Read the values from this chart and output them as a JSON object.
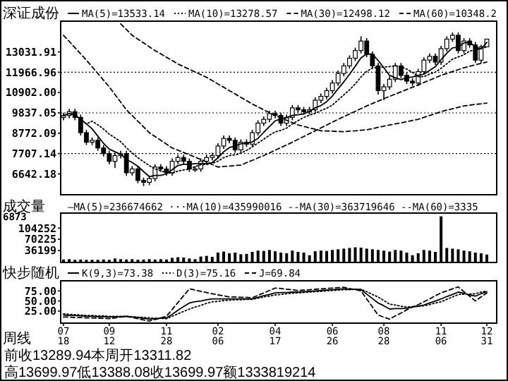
{
  "chart_data": [
    {
      "type": "candlestick",
      "title": "深证成份",
      "legend": "top",
      "tick_labels": "y",
      "categories": [
        null,
        null,
        null,
        null,
        null,
        null,
        null,
        null,
        null,
        null,
        null,
        null,
        null,
        null,
        null,
        null,
        null,
        null,
        null,
        null,
        null,
        null,
        null,
        null,
        null,
        null,
        null,
        null,
        null,
        null,
        null,
        null,
        null,
        null,
        null,
        null,
        null,
        null,
        null,
        null,
        null,
        null,
        null,
        null,
        null,
        null,
        null,
        null,
        null,
        null,
        null,
        null,
        null,
        null,
        null,
        null,
        null,
        null,
        null,
        null,
        null,
        null,
        null,
        null,
        null,
        null,
        null,
        null,
        null,
        null,
        null,
        null,
        null,
        null,
        null
      ],
      "ylim": [
        5550,
        14640
      ],
      "yticks": [
        6642.18,
        7707.14,
        8772.09,
        9837.05,
        {
          "value": 10902,
          "label": "10902.00"
        },
        11966.96,
        13031.91
      ],
      "ref_lines": [
        {
          "axis": "y",
          "value": 7707.14,
          "line_style": "dotted"
        },
        {
          "axis": "y",
          "value": 9837.05,
          "line_style": "dotted"
        },
        {
          "axis": "y",
          "value": 11966.96,
          "line_style": "dotted"
        }
      ],
      "ohlc": [
        [
          9600,
          9850,
          9450,
          9700
        ],
        [
          9700,
          10050,
          9550,
          9900
        ],
        [
          9900,
          10050,
          9450,
          9600
        ],
        [
          9600,
          9750,
          8650,
          8800
        ],
        [
          8800,
          8950,
          8150,
          8300
        ],
        [
          8300,
          8550,
          8150,
          8400
        ],
        [
          8400,
          8550,
          7850,
          8000
        ],
        [
          8000,
          8150,
          7550,
          7700
        ],
        [
          7700,
          7850,
          7150,
          7300
        ],
        [
          7300,
          7750,
          6950,
          7600
        ],
        [
          7600,
          7850,
          7450,
          7700
        ],
        [
          7700,
          7850,
          6550,
          6700
        ],
        [
          6700,
          7050,
          6550,
          6900
        ],
        [
          6900,
          7050,
          6150,
          6300
        ],
        [
          6300,
          6450,
          6000,
          6200
        ],
        [
          6200,
          6550,
          6050,
          6400
        ],
        [
          6400,
          7150,
          6250,
          7000
        ],
        [
          7000,
          7150,
          6750,
          6900
        ],
        [
          6900,
          7050,
          6550,
          6700
        ],
        [
          6700,
          7450,
          6550,
          7300
        ],
        [
          7300,
          7650,
          7150,
          7500
        ],
        [
          7500,
          7650,
          7150,
          7300
        ],
        [
          7300,
          7450,
          6750,
          6900
        ],
        [
          6900,
          7050,
          6750,
          6900
        ],
        [
          6900,
          7450,
          6750,
          7300
        ],
        [
          7300,
          7650,
          7150,
          7500
        ],
        [
          7500,
          7750,
          7350,
          7600
        ],
        [
          7600,
          8250,
          7450,
          8100
        ],
        [
          8100,
          8650,
          7950,
          8500
        ],
        [
          8500,
          8650,
          8250,
          8400
        ],
        [
          8400,
          8550,
          7750,
          7900
        ],
        [
          7900,
          8450,
          7750,
          8300
        ],
        [
          8300,
          8450,
          8050,
          8200
        ],
        [
          8200,
          8950,
          8050,
          8800
        ],
        [
          8800,
          9450,
          8650,
          9300
        ],
        [
          9300,
          9650,
          9150,
          9500
        ],
        [
          9500,
          9950,
          9350,
          9800
        ],
        [
          9800,
          9950,
          9550,
          9700
        ],
        [
          9700,
          9850,
          9150,
          9300
        ],
        [
          9300,
          9750,
          9150,
          9600
        ],
        [
          9600,
          10250,
          9450,
          10100
        ],
        [
          10100,
          10250,
          9850,
          10000
        ],
        [
          10000,
          10150,
          9750,
          9900
        ],
        [
          9900,
          10150,
          9750,
          10000
        ],
        [
          10000,
          10650,
          9850,
          10500
        ],
        [
          10500,
          10850,
          10350,
          10700
        ],
        [
          10700,
          11150,
          10550,
          11000
        ],
        [
          11000,
          11550,
          10850,
          11400
        ],
        [
          11400,
          12050,
          11250,
          11900
        ],
        [
          11900,
          12450,
          11750,
          12300
        ],
        [
          12300,
          12850,
          12150,
          12700
        ],
        [
          12700,
          13250,
          12550,
          13100
        ],
        [
          13100,
          13850,
          12950,
          13600
        ],
        [
          13600,
          13750,
          12750,
          12900
        ],
        [
          12900,
          13050,
          12150,
          12300
        ],
        [
          12300,
          12450,
          10800,
          11000
        ],
        [
          11000,
          11350,
          10500,
          11200
        ],
        [
          11200,
          11750,
          11050,
          11600
        ],
        [
          11600,
          12450,
          11450,
          12300
        ],
        [
          12300,
          12450,
          11650,
          11800
        ],
        [
          11800,
          11950,
          11350,
          11500
        ],
        [
          11500,
          11650,
          11250,
          11400
        ],
        [
          11400,
          12150,
          11250,
          12000
        ],
        [
          12000,
          12750,
          11850,
          12600
        ],
        [
          12600,
          12950,
          12450,
          12800
        ],
        [
          12800,
          12950,
          12350,
          12500
        ],
        [
          12500,
          13350,
          12350,
          13200
        ],
        [
          13200,
          13850,
          13050,
          13700
        ],
        [
          13700,
          14050,
          13550,
          13900
        ],
        [
          13900,
          14050,
          12950,
          13100
        ],
        [
          13100,
          13750,
          12950,
          13600
        ],
        [
          13600,
          13750,
          13250,
          13400
        ],
        [
          13400,
          13550,
          12450,
          12600
        ],
        [
          12600,
          13400,
          12450,
          13300
        ],
        [
          13300,
          13700,
          13300,
          13700
        ]
      ],
      "series": [
        {
          "type": "line",
          "name": "MA(5)=13533.14",
          "color": "#000000",
          "line_style": "solid",
          "values": [
            9700,
            9800,
            9730,
            9500,
            9260,
            9000,
            8620,
            8240,
            7940,
            7800,
            7660,
            7400,
            7240,
            7040,
            6760,
            6500,
            6560,
            6560,
            6640,
            6860,
            7080,
            7140,
            7140,
            7180,
            7180,
            7180,
            7240,
            7480,
            7800,
            8020,
            8100,
            8220,
            8260,
            8320,
            8500,
            8820,
            9120,
            9420,
            9520,
            9580,
            9700,
            9740,
            9780,
            9920,
            10100,
            10220,
            10420,
            10720,
            11100,
            11460,
            11860,
            12280,
            12720,
            12920,
            12920,
            12580,
            12200,
            11800,
            11680,
            11580,
            11680,
            11720,
            11800,
            11860,
            12060,
            12260,
            12620,
            12960,
            13240,
            13280,
            13500,
            13540,
            13280,
            13180,
            13530
          ]
        },
        {
          "type": "line",
          "name": "MA(10)=13278.57",
          "color": "#000000",
          "line_style": "dotted",
          "values": [
            9700,
            9800,
            9730,
            9500,
            9260,
            9400,
            9210,
            8990,
            8720,
            8530,
            8330,
            8010,
            7740,
            7490,
            7280,
            7080,
            6900,
            6800,
            6700,
            6680,
            6790,
            6850,
            6890,
            7020,
            7130,
            7130,
            7190,
            7310,
            7490,
            7600,
            7640,
            7730,
            7870,
            8060,
            8260,
            8460,
            8670,
            8840,
            8920,
            9040,
            9260,
            9430,
            9600,
            9720,
            9810,
            9960,
            10080,
            10250,
            10510,
            10780,
            11040,
            11350,
            11720,
            12010,
            12190,
            12220,
            12240,
            12260,
            12300,
            12250,
            12130,
            11960,
            11740,
            11730,
            11870,
            11970,
            12170,
            12410,
            12650,
            12770,
            12880,
            13080,
            13120,
            13230,
            13280
          ]
        },
        {
          "type": "line",
          "name": "MA(30)=12498.12",
          "color": "#000000",
          "line_style": "dashed",
          "values": [
            13900,
            13580,
            13250,
            12930,
            12600,
            12250,
            11900,
            11550,
            11200,
            10800,
            10400,
            10000,
            9700,
            9400,
            9100,
            8800,
            8600,
            8400,
            8200,
            8000,
            7880,
            7760,
            7640,
            7520,
            7400,
            7270,
            7130,
            7000,
            7030,
            7050,
            7080,
            7100,
            7230,
            7350,
            7480,
            7600,
            7740,
            7880,
            8020,
            8160,
            8300,
            8450,
            8600,
            8750,
            8900,
            9050,
            9200,
            9350,
            9500,
            9640,
            9780,
            9920,
            10060,
            10200,
            10330,
            10450,
            10580,
            10700,
            10820,
            10940,
            11060,
            11180,
            11300,
            11430,
            11550,
            11680,
            11800,
            11900,
            12000,
            12100,
            12200,
            12280,
            12350,
            12430,
            12500
          ]
        },
        {
          "type": "line",
          "name": "MA(60)=10348.2",
          "color": "#000000",
          "line_style": "dashed",
          "values": [
            null,
            null,
            null,
            null,
            null,
            null,
            null,
            null,
            null,
            null,
            14500,
            14200,
            13900,
            13700,
            13500,
            13300,
            13100,
            12930,
            12750,
            12580,
            12400,
            12260,
            12120,
            11980,
            11840,
            11700,
            11530,
            11350,
            11180,
            11000,
            10830,
            10650,
            10480,
            10300,
            10150,
            10000,
            9850,
            9700,
            9580,
            9450,
            9330,
            9200,
            9130,
            9050,
            8980,
            8900,
            8890,
            8880,
            8860,
            8850,
            8880,
            8900,
            8930,
            8950,
            9010,
            9080,
            9140,
            9200,
            9260,
            9320,
            9380,
            9440,
            9500,
            9600,
            9700,
            9800,
            9900,
            9980,
            10050,
            10130,
            10200,
            10240,
            10280,
            10310,
            10350
          ]
        }
      ]
    },
    {
      "type": "bar",
      "title": "成交量",
      "subtitle": "—MA(5)=236674662 ···MA(10)=435990016 --MA(30)=363719646 --MA(60)=3335",
      "annotations": [
        "6873"
      ],
      "tick_labels": "y",
      "color": "#000000",
      "categories": [
        null,
        null,
        null,
        null,
        null,
        null,
        null,
        null,
        null,
        null,
        null,
        null,
        null,
        null,
        null,
        null,
        null,
        null,
        null,
        null,
        null,
        null,
        null,
        null,
        null,
        null,
        null,
        null,
        null,
        null,
        null,
        null,
        null,
        null,
        null,
        null,
        null,
        null,
        null,
        null,
        null,
        null,
        null,
        null,
        null,
        null,
        null,
        null,
        null,
        null,
        null,
        null,
        null,
        null,
        null,
        null,
        null,
        null,
        null,
        null,
        null,
        null,
        null,
        null,
        null,
        null,
        null,
        null,
        null,
        null,
        null,
        null,
        null,
        null,
        null
      ],
      "ylim": [
        0,
        150000
      ],
      "yticks": [
        36199,
        70225,
        104252
      ],
      "values": [
        9000,
        10000,
        8000,
        9000,
        8000,
        8000,
        8000,
        9000,
        8000,
        12000,
        10000,
        9000,
        10000,
        8000,
        9000,
        10000,
        9000,
        10000,
        9000,
        14000,
        16000,
        15000,
        12000,
        10000,
        18000,
        20000,
        17000,
        30000,
        33000,
        28000,
        30000,
        25000,
        26000,
        32000,
        36000,
        35000,
        38000,
        34000,
        30000,
        28000,
        36000,
        32000,
        30000,
        22000,
        34000,
        36000,
        35000,
        38000,
        40000,
        42000,
        44000,
        46000,
        45000,
        42000,
        40000,
        38000,
        36000,
        33000,
        38000,
        36000,
        30000,
        22000,
        28000,
        38000,
        36000,
        32000,
        140000,
        44000,
        42000,
        40000,
        36000,
        34000,
        30000,
        28000,
        24000
      ]
    },
    {
      "type": "line",
      "title": "快步随机",
      "xlabel": "周线",
      "legend": "top",
      "annotations": [
        "前收13289.94本周开13311.82 高13699.97低13388.08收13699.97额1333819214"
      ],
      "categories": [
        "07 18",
        null,
        null,
        null,
        null,
        null,
        null,
        null,
        "09 12",
        null,
        null,
        null,
        null,
        null,
        null,
        null,
        null,
        null,
        "11 28",
        null,
        null,
        null,
        null,
        null,
        null,
        null,
        null,
        "02 06",
        null,
        null,
        null,
        null,
        null,
        null,
        null,
        null,
        null,
        "04 17",
        null,
        null,
        null,
        null,
        null,
        null,
        null,
        null,
        null,
        "06 26",
        null,
        null,
        null,
        null,
        null,
        null,
        null,
        null,
        "08 28",
        null,
        null,
        null,
        null,
        null,
        null,
        null,
        null,
        null,
        "11 06",
        null,
        null,
        null,
        null,
        null,
        null,
        null,
        "12 31"
      ],
      "ylim": [
        -5,
        100
      ],
      "yticks": [
        {
          "value": 25,
          "label": "25.00"
        },
        {
          "value": 50,
          "label": "50.00"
        },
        {
          "value": 75,
          "label": "75.00"
        }
      ],
      "series": [
        {
          "name": "K(9,3)=73.38",
          "color": "#000000",
          "line_style": "solid",
          "values": [
            15,
            14,
            14,
            13,
            12,
            12,
            11,
            11,
            10,
            11,
            11,
            12,
            10,
            9,
            7,
            5,
            6,
            7,
            8,
            17,
            27,
            36,
            45,
            48,
            50,
            53,
            55,
            55,
            55,
            55,
            55,
            55,
            55,
            55,
            59,
            63,
            66,
            70,
            71,
            71,
            72,
            72,
            73,
            74,
            75,
            76,
            77,
            78,
            79,
            80,
            79,
            79,
            78,
            67,
            56,
            45,
            38,
            30,
            31,
            31,
            32,
            35,
            37,
            40,
            45,
            50,
            55,
            61,
            66,
            72,
            69,
            65,
            62,
            68,
            73
          ]
        },
        {
          "name": "D(3)=75.16",
          "color": "#000000",
          "line_style": "dotted",
          "values": [
            18,
            17,
            16,
            15,
            14,
            14,
            13,
            13,
            12,
            12,
            12,
            12,
            11,
            10,
            9,
            8,
            7,
            7,
            6,
            12,
            18,
            24,
            30,
            35,
            39,
            44,
            48,
            49,
            51,
            52,
            53,
            53,
            54,
            54,
            57,
            60,
            62,
            65,
            66,
            68,
            69,
            70,
            71,
            72,
            73,
            74,
            75,
            76,
            77,
            78,
            78,
            79,
            79,
            73,
            66,
            60,
            51,
            42,
            40,
            37,
            35,
            36,
            37,
            38,
            41,
            45,
            48,
            54,
            60,
            66,
            67,
            67,
            68,
            72,
            75
          ]
        },
        {
          "name": "J=69.84",
          "color": "#000000",
          "line_style": "dashed",
          "values": [
            10,
            10,
            9,
            9,
            8,
            8,
            7,
            7,
            6,
            8,
            10,
            12,
            9,
            6,
            3,
            0,
            4,
            8,
            12,
            29,
            46,
            63,
            80,
            77,
            74,
            71,
            68,
            65,
            63,
            60,
            60,
            59,
            59,
            58,
            64,
            70,
            76,
            82,
            81,
            79,
            78,
            76,
            77,
            78,
            79,
            80,
            81,
            82,
            83,
            84,
            81,
            78,
            75,
            55,
            35,
            15,
            10,
            5,
            13,
            20,
            28,
            35,
            41,
            48,
            55,
            63,
            70,
            75,
            80,
            85,
            73,
            62,
            50,
            60,
            70
          ]
        }
      ]
    }
  ]
}
